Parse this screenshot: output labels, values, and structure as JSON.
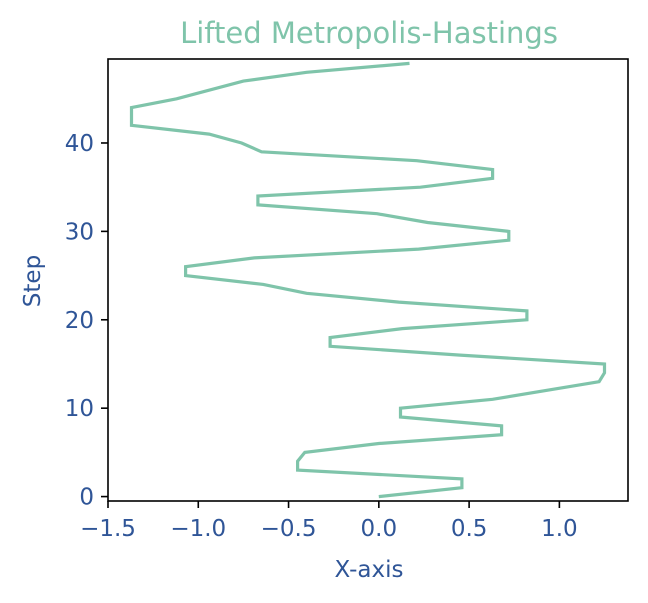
{
  "chart_data": {
    "type": "line",
    "title": "Lifted Metropolis-Hastings",
    "xlabel": "X-axis",
    "ylabel": "Step",
    "xlim": [
      -1.5,
      1.38
    ],
    "ylim": [
      -0.5,
      49.5
    ],
    "xticks": [
      -1.5,
      -1.0,
      -0.5,
      0.0,
      0.5,
      1.0
    ],
    "xtick_labels": [
      "−1.5",
      "−1.0",
      "−0.5",
      "0.0",
      "0.5",
      "1.0"
    ],
    "yticks": [
      0,
      10,
      20,
      30,
      40
    ],
    "ytick_labels": [
      "0",
      "10",
      "20",
      "30",
      "40"
    ],
    "grid": false,
    "series": [
      {
        "color": "#7fc4aa",
        "x": [
          0.0,
          0.46,
          0.46,
          -0.45,
          -0.45,
          -0.41,
          0.0,
          0.68,
          0.68,
          0.12,
          0.12,
          0.63,
          1.22,
          1.25,
          1.25,
          0.45,
          -0.27,
          -0.27,
          0.13,
          0.82,
          0.82,
          0.11,
          -0.4,
          -0.64,
          -1.07,
          -1.07,
          -0.69,
          0.22,
          0.72,
          0.72,
          0.27,
          -0.01,
          -0.67,
          -0.67,
          0.23,
          0.63,
          0.63,
          0.21,
          -0.65,
          -0.76,
          -0.94,
          -1.37,
          -1.37,
          -1.12,
          -0.75,
          -0.4,
          0.17
        ],
        "y": [
          0,
          1,
          2,
          3,
          4,
          5,
          6,
          7,
          8,
          9,
          10,
          11,
          13,
          14,
          15,
          16,
          17,
          18,
          19,
          20,
          21,
          22,
          23,
          24,
          25,
          26,
          27,
          28,
          29,
          30,
          31,
          32,
          33,
          34,
          35,
          36,
          37,
          38,
          39,
          40,
          41,
          42,
          44,
          45,
          47,
          48,
          49
        ]
      }
    ],
    "colors": {
      "line": "#7fc4aa",
      "title": "#7fc4aa",
      "text": "#2f5597",
      "frame": "#000000"
    }
  }
}
